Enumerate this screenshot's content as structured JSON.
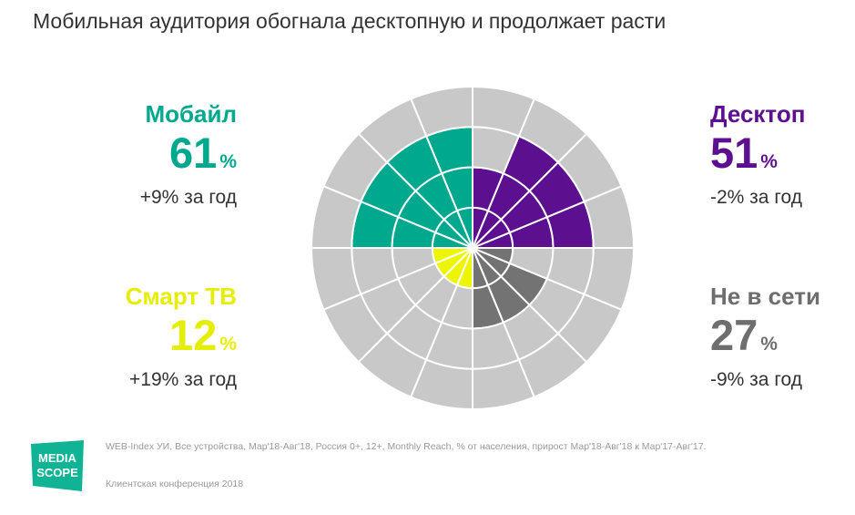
{
  "title": "Мобильная аудитория обогнала десктопную и продолжает расти",
  "chart_data": {
    "type": "polar",
    "title": "",
    "rings": 4,
    "sectors_per_quadrant": 4,
    "background_color": "#c8c8c8",
    "series": [
      {
        "name": "Мобайл",
        "value": 61,
        "change": "+9% за год",
        "color": "#00a88e",
        "quadrant": "top-left",
        "ring_levels": [
          3,
          3,
          3,
          3
        ]
      },
      {
        "name": "Десктоп",
        "value": 51,
        "change": "-2% за год",
        "color": "#5c108f",
        "quadrant": "top-right",
        "ring_levels": [
          3,
          3,
          3,
          2
        ]
      },
      {
        "name": "Смарт ТВ",
        "value": 12,
        "change": "+19% за год",
        "color": "#eef500",
        "quadrant": "bottom-left",
        "ring_levels": [
          1,
          1,
          1,
          1
        ]
      },
      {
        "name": "Не в сети",
        "value": 27,
        "change": "-9% за год",
        "color": "#737373",
        "quadrant": "bottom-right",
        "ring_levels": [
          2,
          2,
          2,
          1
        ]
      }
    ]
  },
  "labels": {
    "mobile": {
      "name": "Мобайл",
      "value": "61",
      "unit": "%",
      "change": "+9% за год"
    },
    "desktop": {
      "name": "Десктоп",
      "value": "51",
      "unit": "%",
      "change": "-2% за год"
    },
    "smarttv": {
      "name": "Смарт ТВ",
      "value": "12",
      "unit": "%",
      "change": "+19% за год"
    },
    "offline": {
      "name": "Не в сети",
      "value": "27",
      "unit": "%",
      "change": "-9% за год"
    }
  },
  "footer": {
    "source": "WEB-Index УИ, Все устройства, Мар'18-Авг'18, Россия 0+, 12+, Monthly Reach, % от населения, прирост Мар'18-Авг'18 к Мар'17-Авг'17.",
    "event": "Клиентская конференция 2018",
    "logo_text": "MEDIA SCOPE"
  }
}
